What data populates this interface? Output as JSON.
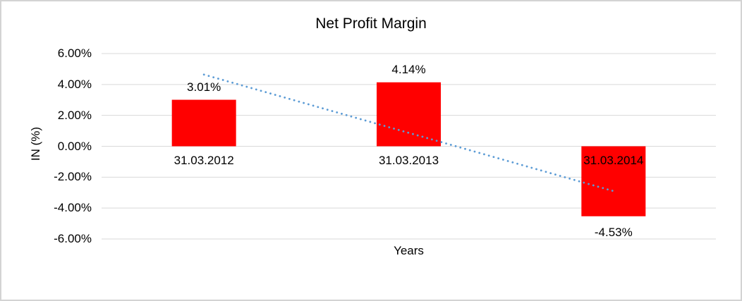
{
  "frame": {
    "background_color": "#FFFFFF",
    "border_color": "#D3D3D3"
  },
  "chart_data": {
    "type": "bar",
    "title": "Net Profit Margin",
    "xlabel": "Years",
    "ylabel": "IN (%)",
    "categories": [
      "31.03.2012",
      "31.03.2013",
      "31.03.2014"
    ],
    "values": [
      3.01,
      4.14,
      -4.53
    ],
    "value_labels": [
      "3.01%",
      "4.14%",
      "-4.53%"
    ],
    "ylim": [
      -6,
      6
    ],
    "y_ticks": [
      6,
      4,
      2,
      0,
      -2,
      -4,
      -6
    ],
    "y_tick_labels": [
      "6.00%",
      "4.00%",
      "2.00%",
      "0.00%",
      "-2.00%",
      "-4.00%",
      "-6.00%"
    ],
    "grid": true,
    "gridline_color": "#D9D9D9",
    "bar_color": "#FF0000",
    "label_color": "#000000",
    "legend": "none",
    "trendline": {
      "type": "linear",
      "style": "dotted",
      "color": "#5B9BD5",
      "y_start_pct": 4.64,
      "y_end_pct": -2.9
    }
  }
}
